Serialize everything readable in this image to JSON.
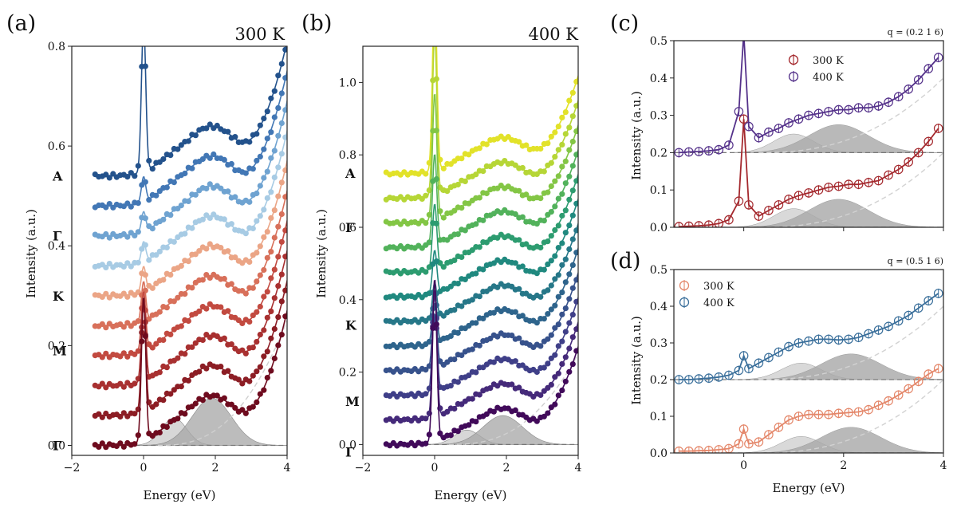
{
  "x_axis": {
    "label": "Energy (eV)",
    "ticks": [
      "−2",
      "0",
      "2",
      "4"
    ]
  },
  "y_axis_label": "Intensity (a.u.)",
  "panels": [
    {
      "id": "a",
      "label": "(a)",
      "title": "300 K",
      "yticks": [
        "0.0",
        "0.2",
        "0.4",
        "0.6",
        "0.8"
      ],
      "path_labels": [
        {
          "text": "A",
          "color": "#1f3f74"
        },
        {
          "text": "Γ",
          "color": "#3d6aa8"
        },
        {
          "text": "K",
          "color": "#9ec7e6"
        },
        {
          "text": "M",
          "color": "#e0815f"
        },
        {
          "text": "Γ",
          "color": "#6e0b1e"
        }
      ]
    },
    {
      "id": "b",
      "label": "(b)",
      "title": "400 K",
      "yticks": [
        "0.0",
        "0.2",
        "0.4",
        "0.6",
        "0.8",
        "1.0"
      ],
      "path_labels": [
        {
          "text": "A",
          "color": "#f2e23a"
        },
        {
          "text": "Γ",
          "color": "#92cc5a"
        },
        {
          "text": "K",
          "color": "#37608e"
        },
        {
          "text": "M",
          "color": "#3f2f80"
        },
        {
          "text": "Γ",
          "color": "#410a5a"
        }
      ]
    },
    {
      "id": "c",
      "label": "(c)",
      "q_label": "q = (0.2 1 6)",
      "yticks": [
        "0.0",
        "0.1",
        "0.2",
        "0.3",
        "0.4",
        "0.5"
      ],
      "legend": [
        {
          "text": "300 K",
          "color": "#a4282d"
        },
        {
          "text": "400 K",
          "color": "#54318a"
        }
      ]
    },
    {
      "id": "d",
      "label": "(d)",
      "q_label": "q = (0.5 1 6)",
      "yticks": [
        "0.0",
        "0.1",
        "0.2",
        "0.3",
        "0.4",
        "0.5"
      ],
      "legend": [
        {
          "text": "300 K",
          "color": "#e4876a"
        },
        {
          "text": "400 K",
          "color": "#3a6f9b"
        }
      ]
    }
  ],
  "chart_data": [
    {
      "type": "scatter",
      "panel": "a",
      "title": "300 K",
      "xlabel": "Energy (eV)",
      "ylabel": "Intensity (a.u.)",
      "xlim": [
        -2,
        4
      ],
      "ylim": [
        -0.02,
        0.8
      ],
      "n_spectra": 10,
      "offset_start": 0.0,
      "offset_step": 0.06,
      "elastic_peak_offsets": [
        0.29,
        0.22,
        0.16,
        0.12,
        0.08,
        0.05,
        0.04,
        0.04,
        0.05,
        0.3
      ],
      "x_range": [
        -1.35,
        4.0
      ],
      "colors": [
        "#6e0b1e",
        "#8c1d24",
        "#a83030",
        "#c24a40",
        "#d8705a",
        "#eba586",
        "#a7cbe4",
        "#6fa3d1",
        "#4277b5",
        "#23528c",
        "#153b6e"
      ],
      "fit_components": [
        {
          "center": 0.85,
          "height": 0.055,
          "width": 0.35
        },
        {
          "center": 1.9,
          "height": 0.095,
          "width": 0.55
        }
      ]
    },
    {
      "type": "scatter",
      "panel": "b",
      "title": "400 K",
      "xlabel": "Energy (eV)",
      "ylabel": "Intensity (a.u.)",
      "xlim": [
        -2,
        4
      ],
      "ylim": [
        -0.03,
        1.1
      ],
      "n_spectra": 12,
      "offset_start": 0.0,
      "offset_step": 0.068,
      "elastic_peak_offsets": [
        0.45,
        0.35,
        0.28,
        0.2,
        0.14,
        0.1,
        0.12,
        0.18,
        0.25,
        0.35,
        0.45,
        0.5
      ],
      "x_range": [
        -1.35,
        4.0
      ],
      "colors": [
        "#410a5a",
        "#452a7a",
        "#3f3f88",
        "#37528c",
        "#2e648c",
        "#267788",
        "#20897f",
        "#2d9c70",
        "#52b25b",
        "#83c645",
        "#b6d636",
        "#e2e229",
        "#f4e92a"
      ],
      "fit_components": [
        {
          "center": 0.9,
          "height": 0.04,
          "width": 0.35
        },
        {
          "center": 1.9,
          "height": 0.08,
          "width": 0.55
        }
      ]
    },
    {
      "type": "scatter",
      "panel": "c",
      "q": "(0.2 1 6)",
      "xlabel": "",
      "ylabel": "Intensity (a.u.)",
      "xlim": [
        -1.4,
        4
      ],
      "ylim": [
        0,
        0.5
      ],
      "series": [
        {
          "name": "300 K",
          "color": "#a4282d",
          "baseline": 0.0,
          "x": [
            -1.3,
            -1.1,
            -0.9,
            -0.7,
            -0.5,
            -0.3,
            -0.1,
            0.0,
            0.1,
            0.3,
            0.5,
            0.7,
            0.9,
            1.1,
            1.3,
            1.5,
            1.7,
            1.9,
            2.1,
            2.3,
            2.5,
            2.7,
            2.9,
            3.1,
            3.3,
            3.5,
            3.7,
            3.9
          ],
          "y": [
            0.002,
            0.003,
            0.004,
            0.006,
            0.01,
            0.02,
            0.07,
            0.29,
            0.06,
            0.03,
            0.045,
            0.06,
            0.075,
            0.085,
            0.092,
            0.1,
            0.107,
            0.11,
            0.115,
            0.115,
            0.12,
            0.125,
            0.14,
            0.155,
            0.175,
            0.2,
            0.23,
            0.265
          ]
        },
        {
          "name": "400 K",
          "color": "#54318a",
          "baseline": 0.2,
          "x": [
            -1.3,
            -1.1,
            -0.9,
            -0.7,
            -0.5,
            -0.3,
            -0.1,
            0.0,
            0.1,
            0.3,
            0.5,
            0.7,
            0.9,
            1.1,
            1.3,
            1.5,
            1.7,
            1.9,
            2.1,
            2.3,
            2.5,
            2.7,
            2.9,
            3.1,
            3.3,
            3.5,
            3.7,
            3.9
          ],
          "y": [
            0.2,
            0.202,
            0.203,
            0.205,
            0.208,
            0.22,
            0.31,
            0.52,
            0.27,
            0.24,
            0.255,
            0.265,
            0.28,
            0.29,
            0.3,
            0.305,
            0.31,
            0.315,
            0.315,
            0.32,
            0.32,
            0.325,
            0.335,
            0.35,
            0.37,
            0.395,
            0.425,
            0.455
          ]
        }
      ],
      "fit_components": [
        {
          "center": 1.0,
          "height": 0.05,
          "width": 0.4
        },
        {
          "center": 1.9,
          "height": 0.075,
          "width": 0.6
        }
      ]
    },
    {
      "type": "scatter",
      "panel": "d",
      "q": "(0.5 1 6)",
      "xlabel": "Energy (eV)",
      "ylabel": "Intensity (a.u.)",
      "xlim": [
        -1.4,
        4
      ],
      "ylim": [
        0,
        0.5
      ],
      "series": [
        {
          "name": "300 K",
          "color": "#e4876a",
          "baseline": 0.0,
          "x": [
            -1.3,
            -1.1,
            -0.9,
            -0.7,
            -0.5,
            -0.3,
            -0.1,
            0.0,
            0.1,
            0.3,
            0.5,
            0.7,
            0.9,
            1.1,
            1.3,
            1.5,
            1.7,
            1.9,
            2.1,
            2.3,
            2.5,
            2.7,
            2.9,
            3.1,
            3.3,
            3.5,
            3.7,
            3.9
          ],
          "y": [
            0.005,
            0.005,
            0.006,
            0.007,
            0.009,
            0.012,
            0.025,
            0.065,
            0.025,
            0.03,
            0.05,
            0.07,
            0.09,
            0.1,
            0.105,
            0.105,
            0.105,
            0.108,
            0.11,
            0.112,
            0.118,
            0.13,
            0.142,
            0.158,
            0.175,
            0.195,
            0.215,
            0.23
          ]
        },
        {
          "name": "400 K",
          "color": "#3a6f9b",
          "baseline": 0.2,
          "x": [
            -1.3,
            -1.1,
            -0.9,
            -0.7,
            -0.5,
            -0.3,
            -0.1,
            0.0,
            0.1,
            0.3,
            0.5,
            0.7,
            0.9,
            1.1,
            1.3,
            1.5,
            1.7,
            1.9,
            2.1,
            2.3,
            2.5,
            2.7,
            2.9,
            3.1,
            3.3,
            3.5,
            3.7,
            3.9
          ],
          "y": [
            0.2,
            0.2,
            0.202,
            0.204,
            0.207,
            0.212,
            0.225,
            0.265,
            0.23,
            0.245,
            0.26,
            0.275,
            0.29,
            0.3,
            0.305,
            0.31,
            0.31,
            0.308,
            0.31,
            0.315,
            0.325,
            0.335,
            0.345,
            0.36,
            0.375,
            0.395,
            0.415,
            0.435
          ]
        }
      ],
      "fit_components": [
        {
          "center": 1.15,
          "height": 0.045,
          "width": 0.4
        },
        {
          "center": 2.15,
          "height": 0.07,
          "width": 0.6
        }
      ]
    }
  ]
}
